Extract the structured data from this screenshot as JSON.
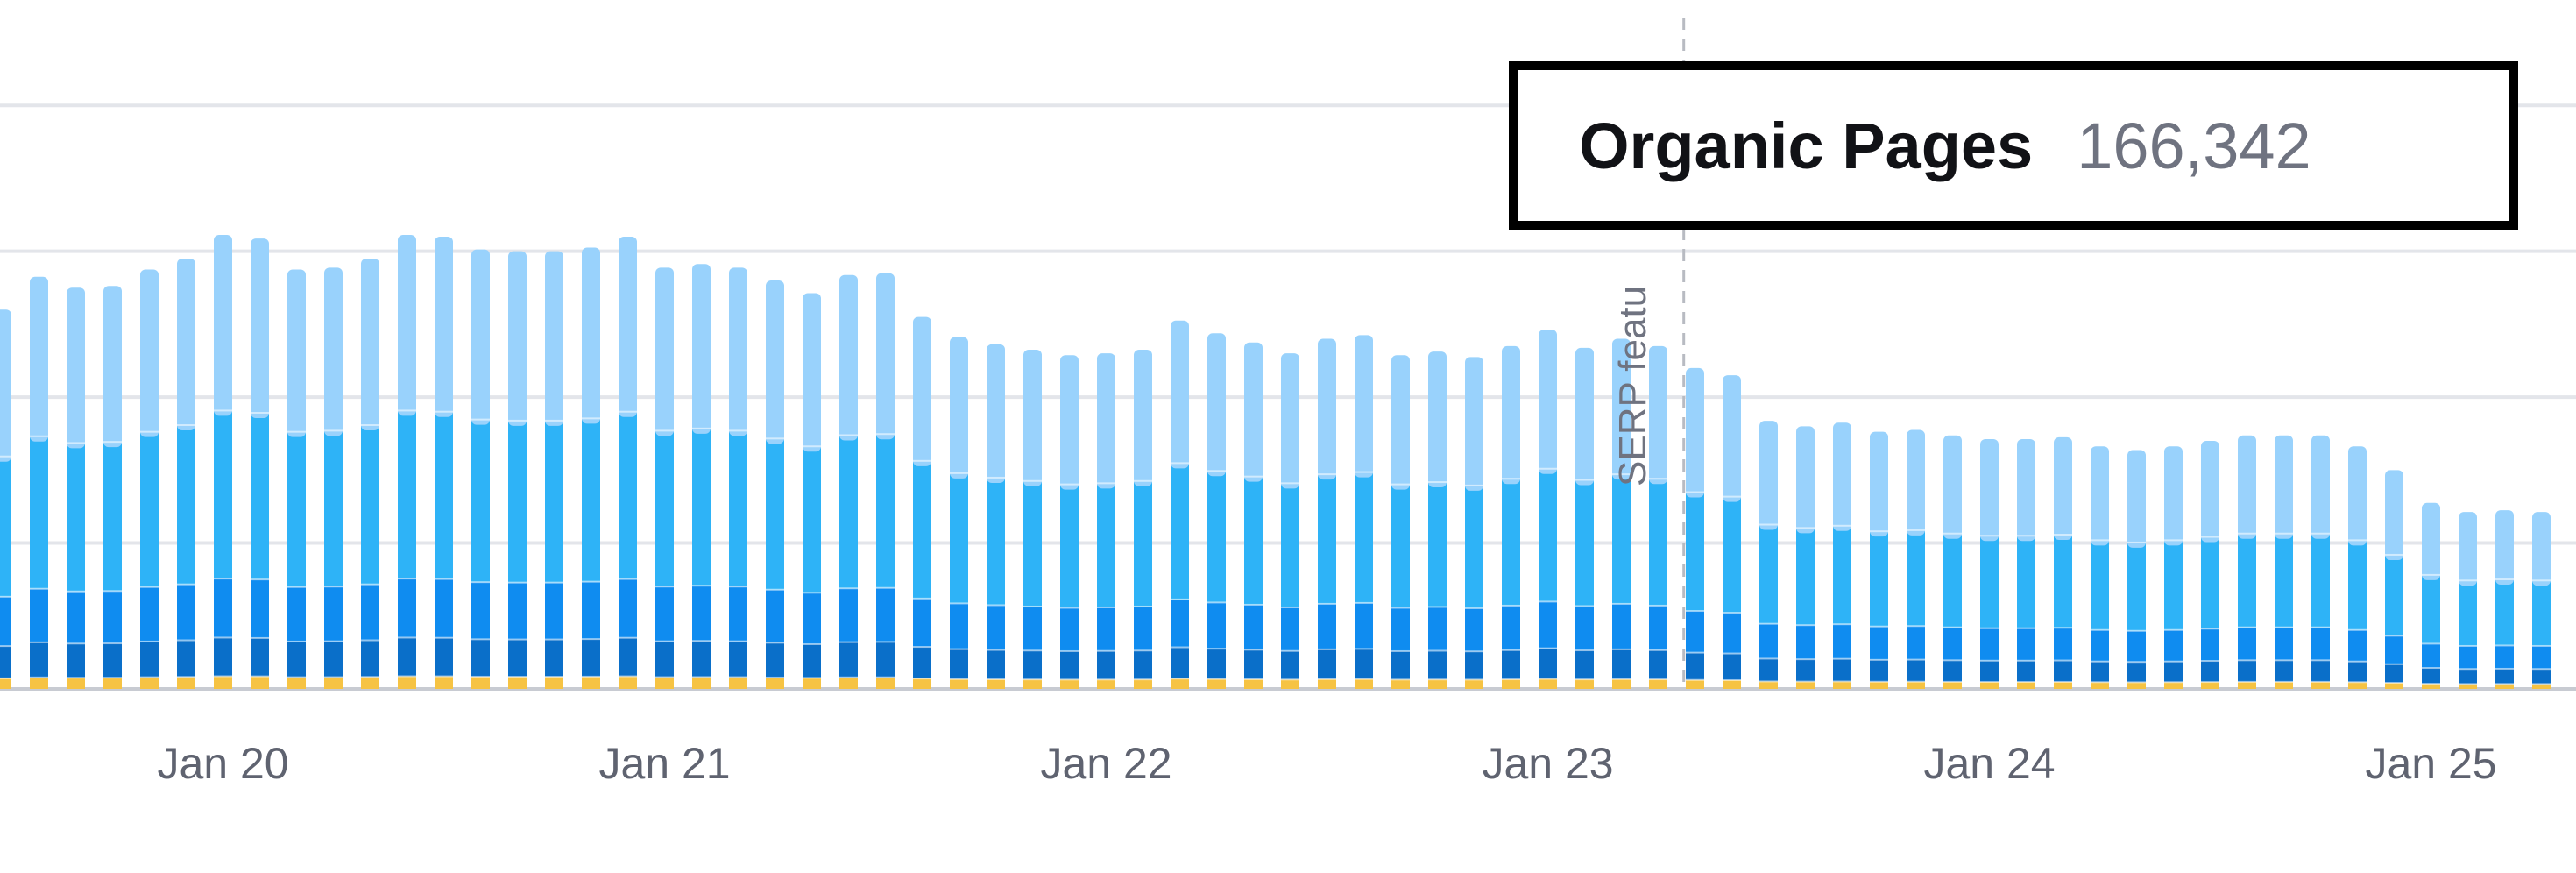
{
  "chart_data": {
    "type": "bar",
    "stacked": true,
    "x_tick_labels": [
      "Jan 20",
      "Jan 21",
      "Jan 22",
      "Jan 23",
      "Jan 24",
      "Jan 25"
    ],
    "x_tick_bar_index": [
      6,
      18,
      30,
      42,
      54,
      66
    ],
    "grid": true,
    "ylim": [
      0,
      360000
    ],
    "series": [
      {
        "color": "#f6c343"
      },
      {
        "color": "#0a6fc9"
      },
      {
        "color": "#0f8cf0"
      },
      {
        "color": "#2eb3f7"
      },
      {
        "color": "#99d2fc"
      }
    ],
    "segment_fractions": [
      0.028,
      0.085,
      0.13,
      0.37,
      0.387
    ],
    "totals": [
      208000,
      226000,
      220000,
      221000,
      230000,
      236000,
      249000,
      247000,
      230000,
      231000,
      236000,
      249000,
      248000,
      241000,
      240000,
      240000,
      242000,
      248000,
      231000,
      233000,
      231000,
      224000,
      217000,
      227000,
      228000,
      204000,
      193000,
      189000,
      186000,
      183000,
      184000,
      186000,
      202000,
      195000,
      190000,
      184000,
      192000,
      194000,
      183000,
      185000,
      182000,
      188000,
      197000,
      187000,
      192000,
      188000,
      176000,
      172000,
      147000,
      144000,
      146000,
      141000,
      142000,
      139000,
      137000,
      137000,
      138000,
      133000,
      131000,
      133000,
      136000,
      139000,
      139000,
      139000,
      133000,
      120000,
      102000,
      97000,
      98000,
      97000
    ],
    "annotation": {
      "label": "SERP featu",
      "bar_index": 45.6
    },
    "reference_line_bar_index": -0.9
  },
  "tooltip": {
    "title": "Organic Pages",
    "value": "166,342"
  }
}
